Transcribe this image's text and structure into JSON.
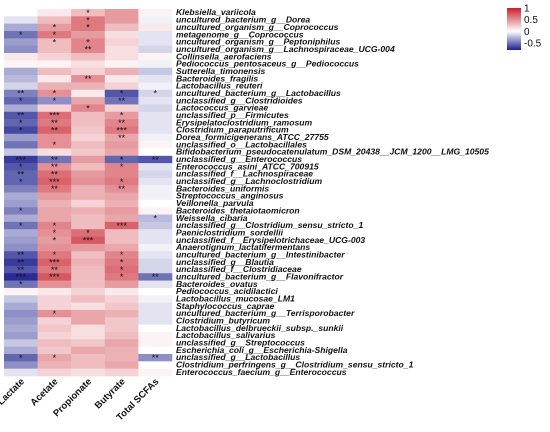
{
  "chart_data": {
    "type": "heatmap",
    "columns": [
      "Lactate",
      "Acetate",
      "Propionate",
      "Butyrate",
      "Total SCFAs"
    ],
    "rows": [
      "Klebsiella_variicola",
      "uncultured_bacterium_g__Dorea",
      "uncultured_organism_g__Coprococcus",
      "metagenome_g__Coprococcus",
      "uncultured_organism_g__Peptoniphilus",
      "uncultured_organism_g__Lachnospiraceae_UCG-004",
      "Collinsella_aerofaciens",
      "Pediococcus_pentosaceus_g__Pediococcus",
      "Sutterella_timonensis",
      "Bacteroides_fragilis",
      "Lactobacillus_reuteri",
      "uncultured_bacterium_g__Lactobacillus",
      "unclassified_g__Clostridioides",
      "Lactococcus_garvieae",
      "unclassified_p__Firmicutes",
      "Erysipelatoclostridium_ramosum",
      "Clostridium_paraputrificum",
      "Dorea_formicigenerans_ATCC_27755",
      "unclassified_o__Lactobacillales",
      "Bifidobacterium_pseudocatenulatum_DSM_20438__JCM_1200__LMG_10505",
      "unclassified_g__Enterococcus",
      "Enterococcus_asini_ATCC_700915",
      "unclassified_f__Lachnospiraceae",
      "unclassified_g__Lachnoclostridium",
      "Bacteroides_uniformis",
      "Streptococcus_anginosus",
      "Veillonella_parvula",
      "Bacteroides_thetaiotaomicron",
      "Weissella_cibaria",
      "unclassified_g__Clostridium_sensu_stricto_1",
      "Paeniclostridium_sordellii",
      "unclassified_f__Erysipelotrichaceae_UCG-003",
      "Anaerotignum_lactatifermentans",
      "uncultured_bacterium_g__Intestinibacter",
      "unclassified_g__Blautia",
      "unclassified_f__Clostridiaceae",
      "uncultured_bacterium_g__Flavonifractor",
      "Bacteroides_ovatus",
      "Pediococcus_acidilactici",
      "Lactobacillus_mucosae_LM1",
      "Staphylococcus_caprae",
      "uncultured_bacterium_g__Terrisporobacter",
      "Clostridium_butyricum",
      "Lactobacillus_delbrueckii_subsp._sunkii",
      "Lactobacillus_salivarius",
      "unclassified_g__Streptococcus",
      "Escherichia_coli_g__Escherichia-Shigella",
      "unclassified_g__Lactobacillus",
      "Clostridium_perfringens_g__Clostridium_sensu_stricto_1",
      "Enterococcus_faecium_g__Enterococcus"
    ],
    "values": [
      [
        0.0,
        0.1,
        0.3,
        0.45,
        0.05
      ],
      [
        -0.1,
        0.3,
        0.6,
        0.45,
        -0.05
      ],
      [
        -0.3,
        0.45,
        0.6,
        0.3,
        0.1
      ],
      [
        -0.5,
        0.6,
        0.45,
        0.15,
        -0.1
      ],
      [
        -0.35,
        0.3,
        0.55,
        0.2,
        -0.1
      ],
      [
        -0.4,
        0.3,
        0.55,
        0.15,
        -0.15
      ],
      [
        0.1,
        0.2,
        0.3,
        0.15,
        0.05
      ],
      [
        0.05,
        0.05,
        0.15,
        0.05,
        -0.05
      ],
      [
        -0.3,
        0.3,
        0.2,
        0.35,
        -0.2
      ],
      [
        -0.25,
        0.1,
        0.5,
        0.1,
        -0.1
      ],
      [
        -0.15,
        0.35,
        0.35,
        0.2,
        -0.05
      ],
      [
        -0.45,
        0.5,
        0.1,
        -0.6,
        -0.15
      ],
      [
        -0.55,
        -0.4,
        0.4,
        -0.5,
        -0.1
      ],
      [
        -0.3,
        0.2,
        0.55,
        0.2,
        -0.15
      ],
      [
        -0.6,
        0.65,
        0.3,
        0.45,
        -0.1
      ],
      [
        -0.55,
        0.6,
        0.3,
        0.55,
        -0.1
      ],
      [
        -0.65,
        0.7,
        0.25,
        0.6,
        -0.1
      ],
      [
        -0.35,
        0.5,
        0.2,
        0.4,
        -0.05
      ],
      [
        -0.5,
        0.5,
        0.3,
        0.45,
        0.05
      ],
      [
        -0.2,
        0.15,
        0.25,
        0.4,
        0.0
      ],
      [
        -0.7,
        -0.5,
        0.45,
        -0.55,
        -0.6
      ],
      [
        -0.6,
        0.5,
        0.3,
        0.55,
        -0.1
      ],
      [
        -0.55,
        0.65,
        0.45,
        0.55,
        -0.15
      ],
      [
        -0.55,
        0.7,
        0.5,
        0.6,
        -0.1
      ],
      [
        -0.45,
        0.6,
        0.35,
        0.5,
        -0.05
      ],
      [
        -0.3,
        0.45,
        0.35,
        0.4,
        -0.05
      ],
      [
        -0.35,
        0.35,
        0.2,
        0.35,
        0.0
      ],
      [
        -0.45,
        0.4,
        0.35,
        0.45,
        0.05
      ],
      [
        -0.3,
        0.4,
        0.3,
        0.4,
        -0.25
      ],
      [
        -0.5,
        0.55,
        0.3,
        0.7,
        -0.2
      ],
      [
        -0.3,
        0.5,
        0.65,
        0.3,
        -0.1
      ],
      [
        -0.35,
        0.45,
        0.75,
        0.3,
        -0.1
      ],
      [
        -0.4,
        0.5,
        0.45,
        0.4,
        -0.05
      ],
      [
        -0.6,
        0.6,
        0.3,
        0.55,
        -0.1
      ],
      [
        -0.7,
        0.7,
        0.35,
        0.6,
        -0.15
      ],
      [
        -0.6,
        0.6,
        0.3,
        0.65,
        -0.15
      ],
      [
        -0.75,
        0.75,
        0.3,
        0.6,
        -0.5
      ],
      [
        -0.5,
        0.5,
        0.3,
        0.45,
        -0.1
      ],
      [
        0.05,
        0.1,
        0.2,
        0.1,
        0.0
      ],
      [
        -0.2,
        0.2,
        0.3,
        0.2,
        -0.05
      ],
      [
        -0.3,
        0.2,
        0.15,
        0.25,
        -0.1
      ],
      [
        -0.4,
        0.5,
        0.4,
        0.35,
        -0.1
      ],
      [
        -0.35,
        0.2,
        0.4,
        0.25,
        -0.1
      ],
      [
        -0.3,
        0.25,
        0.15,
        0.25,
        0.0
      ],
      [
        -0.35,
        0.2,
        0.15,
        0.3,
        0.05
      ],
      [
        -0.2,
        0.3,
        0.25,
        0.4,
        0.05
      ],
      [
        -0.3,
        0.25,
        0.4,
        0.35,
        0.0
      ],
      [
        -0.55,
        0.4,
        0.3,
        0.35,
        -0.4
      ],
      [
        -0.4,
        0.35,
        0.3,
        0.4,
        0.0
      ],
      [
        -0.1,
        0.2,
        0.15,
        0.2,
        0.05
      ]
    ],
    "significance": [
      [
        "",
        "",
        "*",
        "",
        ""
      ],
      [
        "",
        "",
        "*",
        "",
        ""
      ],
      [
        "",
        "*",
        "*",
        "",
        ""
      ],
      [
        "*",
        "*",
        "",
        "",
        ""
      ],
      [
        "",
        "*",
        "*",
        "",
        ""
      ],
      [
        "",
        "",
        "**",
        "",
        ""
      ],
      [
        "",
        "",
        "",
        "",
        ""
      ],
      [
        "",
        "",
        "",
        "",
        ""
      ],
      [
        "",
        "",
        "",
        "",
        ""
      ],
      [
        "",
        "",
        "**",
        "",
        ""
      ],
      [
        "",
        "",
        "",
        "",
        ""
      ],
      [
        "**",
        "*",
        "",
        "*",
        "*"
      ],
      [
        "*",
        "*",
        "",
        "**",
        ""
      ],
      [
        "",
        "",
        "*",
        "",
        ""
      ],
      [
        "**",
        "***",
        "",
        "*",
        ""
      ],
      [
        "*",
        "**",
        "",
        "**",
        ""
      ],
      [
        "*",
        "**",
        "",
        "***",
        ""
      ],
      [
        "",
        "",
        "",
        "**",
        ""
      ],
      [
        "",
        "*",
        "",
        "",
        ""
      ],
      [
        "",
        "",
        "",
        "",
        ""
      ],
      [
        "***",
        "**",
        "",
        "*",
        "**"
      ],
      [
        "*",
        "**",
        "",
        "*",
        ""
      ],
      [
        "**",
        "**",
        "",
        "",
        ""
      ],
      [
        "*",
        "***",
        "",
        "*",
        ""
      ],
      [
        "",
        "**",
        "",
        "**",
        ""
      ],
      [
        "",
        "",
        "",
        "",
        ""
      ],
      [
        "",
        "",
        "",
        "",
        ""
      ],
      [
        "*",
        "",
        "",
        "",
        ""
      ],
      [
        "",
        "",
        "",
        "",
        "*"
      ],
      [
        "*",
        "*",
        "",
        "***",
        ""
      ],
      [
        "",
        "*",
        "*",
        "",
        ""
      ],
      [
        "",
        "*",
        "***",
        "",
        ""
      ],
      [
        "",
        "",
        "",
        "",
        ""
      ],
      [
        "**",
        "*",
        "",
        "*",
        ""
      ],
      [
        "**",
        "***",
        "",
        "*",
        ""
      ],
      [
        "**",
        "**",
        "",
        "*",
        ""
      ],
      [
        "***",
        "***",
        "",
        "*",
        "**"
      ],
      [
        "*",
        "",
        "",
        "",
        ""
      ],
      [
        "",
        "",
        "",
        "",
        ""
      ],
      [
        "",
        "",
        "",
        "",
        ""
      ],
      [
        "",
        "",
        "",
        "",
        ""
      ],
      [
        "",
        "*",
        "",
        "",
        ""
      ],
      [
        "",
        "",
        "",
        "",
        ""
      ],
      [
        "",
        "",
        "",
        "",
        ""
      ],
      [
        "",
        "",
        "",
        "",
        ""
      ],
      [
        "",
        "",
        "",
        "",
        ""
      ],
      [
        "",
        "",
        "",
        "",
        ""
      ],
      [
        "*",
        "*",
        "",
        "",
        "**"
      ],
      [
        "",
        "",
        "",
        "",
        ""
      ],
      [
        "",
        "",
        "",
        "",
        ""
      ]
    ],
    "color_scale": {
      "min": -0.8,
      "max": 1.0,
      "ticks": [
        1,
        0.5,
        0,
        -0.5
      ],
      "colors": [
        "#1b1f8c",
        "#ffffff",
        "#c8202c"
      ]
    },
    "legend_position": "top-right"
  }
}
